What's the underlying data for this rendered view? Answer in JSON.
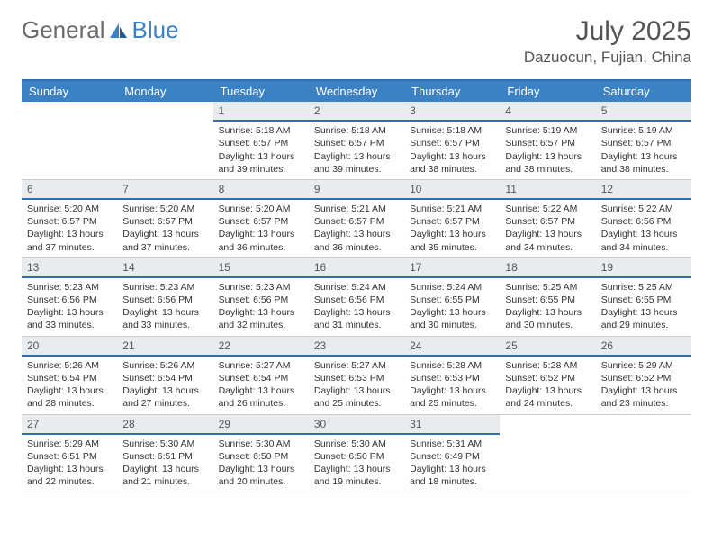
{
  "brand": {
    "part1": "General",
    "part2": "Blue"
  },
  "title": "July 2025",
  "location": "Dazuocun, Fujian, China",
  "weekdays": [
    "Sunday",
    "Monday",
    "Tuesday",
    "Wednesday",
    "Thursday",
    "Friday",
    "Saturday"
  ],
  "colors": {
    "header_bar": "#3b82c4",
    "header_border": "#2f6faf",
    "daynum_bg": "#e9ecef",
    "text": "#333333",
    "muted": "#555555",
    "logo_gray": "#6b6b6b",
    "logo_blue": "#3b7fc4"
  },
  "layout": {
    "columns": 7,
    "first_weekday_index": 2,
    "days_in_month": 31
  },
  "labels": {
    "sunrise": "Sunrise:",
    "sunset": "Sunset:",
    "daylight": "Daylight:"
  },
  "days": [
    {
      "n": 1,
      "sunrise": "5:18 AM",
      "sunset": "6:57 PM",
      "daylight": "13 hours and 39 minutes."
    },
    {
      "n": 2,
      "sunrise": "5:18 AM",
      "sunset": "6:57 PM",
      "daylight": "13 hours and 39 minutes."
    },
    {
      "n": 3,
      "sunrise": "5:18 AM",
      "sunset": "6:57 PM",
      "daylight": "13 hours and 38 minutes."
    },
    {
      "n": 4,
      "sunrise": "5:19 AM",
      "sunset": "6:57 PM",
      "daylight": "13 hours and 38 minutes."
    },
    {
      "n": 5,
      "sunrise": "5:19 AM",
      "sunset": "6:57 PM",
      "daylight": "13 hours and 38 minutes."
    },
    {
      "n": 6,
      "sunrise": "5:20 AM",
      "sunset": "6:57 PM",
      "daylight": "13 hours and 37 minutes."
    },
    {
      "n": 7,
      "sunrise": "5:20 AM",
      "sunset": "6:57 PM",
      "daylight": "13 hours and 37 minutes."
    },
    {
      "n": 8,
      "sunrise": "5:20 AM",
      "sunset": "6:57 PM",
      "daylight": "13 hours and 36 minutes."
    },
    {
      "n": 9,
      "sunrise": "5:21 AM",
      "sunset": "6:57 PM",
      "daylight": "13 hours and 36 minutes."
    },
    {
      "n": 10,
      "sunrise": "5:21 AM",
      "sunset": "6:57 PM",
      "daylight": "13 hours and 35 minutes."
    },
    {
      "n": 11,
      "sunrise": "5:22 AM",
      "sunset": "6:57 PM",
      "daylight": "13 hours and 34 minutes."
    },
    {
      "n": 12,
      "sunrise": "5:22 AM",
      "sunset": "6:56 PM",
      "daylight": "13 hours and 34 minutes."
    },
    {
      "n": 13,
      "sunrise": "5:23 AM",
      "sunset": "6:56 PM",
      "daylight": "13 hours and 33 minutes."
    },
    {
      "n": 14,
      "sunrise": "5:23 AM",
      "sunset": "6:56 PM",
      "daylight": "13 hours and 33 minutes."
    },
    {
      "n": 15,
      "sunrise": "5:23 AM",
      "sunset": "6:56 PM",
      "daylight": "13 hours and 32 minutes."
    },
    {
      "n": 16,
      "sunrise": "5:24 AM",
      "sunset": "6:56 PM",
      "daylight": "13 hours and 31 minutes."
    },
    {
      "n": 17,
      "sunrise": "5:24 AM",
      "sunset": "6:55 PM",
      "daylight": "13 hours and 30 minutes."
    },
    {
      "n": 18,
      "sunrise": "5:25 AM",
      "sunset": "6:55 PM",
      "daylight": "13 hours and 30 minutes."
    },
    {
      "n": 19,
      "sunrise": "5:25 AM",
      "sunset": "6:55 PM",
      "daylight": "13 hours and 29 minutes."
    },
    {
      "n": 20,
      "sunrise": "5:26 AM",
      "sunset": "6:54 PM",
      "daylight": "13 hours and 28 minutes."
    },
    {
      "n": 21,
      "sunrise": "5:26 AM",
      "sunset": "6:54 PM",
      "daylight": "13 hours and 27 minutes."
    },
    {
      "n": 22,
      "sunrise": "5:27 AM",
      "sunset": "6:54 PM",
      "daylight": "13 hours and 26 minutes."
    },
    {
      "n": 23,
      "sunrise": "5:27 AM",
      "sunset": "6:53 PM",
      "daylight": "13 hours and 25 minutes."
    },
    {
      "n": 24,
      "sunrise": "5:28 AM",
      "sunset": "6:53 PM",
      "daylight": "13 hours and 25 minutes."
    },
    {
      "n": 25,
      "sunrise": "5:28 AM",
      "sunset": "6:52 PM",
      "daylight": "13 hours and 24 minutes."
    },
    {
      "n": 26,
      "sunrise": "5:29 AM",
      "sunset": "6:52 PM",
      "daylight": "13 hours and 23 minutes."
    },
    {
      "n": 27,
      "sunrise": "5:29 AM",
      "sunset": "6:51 PM",
      "daylight": "13 hours and 22 minutes."
    },
    {
      "n": 28,
      "sunrise": "5:30 AM",
      "sunset": "6:51 PM",
      "daylight": "13 hours and 21 minutes."
    },
    {
      "n": 29,
      "sunrise": "5:30 AM",
      "sunset": "6:50 PM",
      "daylight": "13 hours and 20 minutes."
    },
    {
      "n": 30,
      "sunrise": "5:30 AM",
      "sunset": "6:50 PM",
      "daylight": "13 hours and 19 minutes."
    },
    {
      "n": 31,
      "sunrise": "5:31 AM",
      "sunset": "6:49 PM",
      "daylight": "13 hours and 18 minutes."
    }
  ]
}
